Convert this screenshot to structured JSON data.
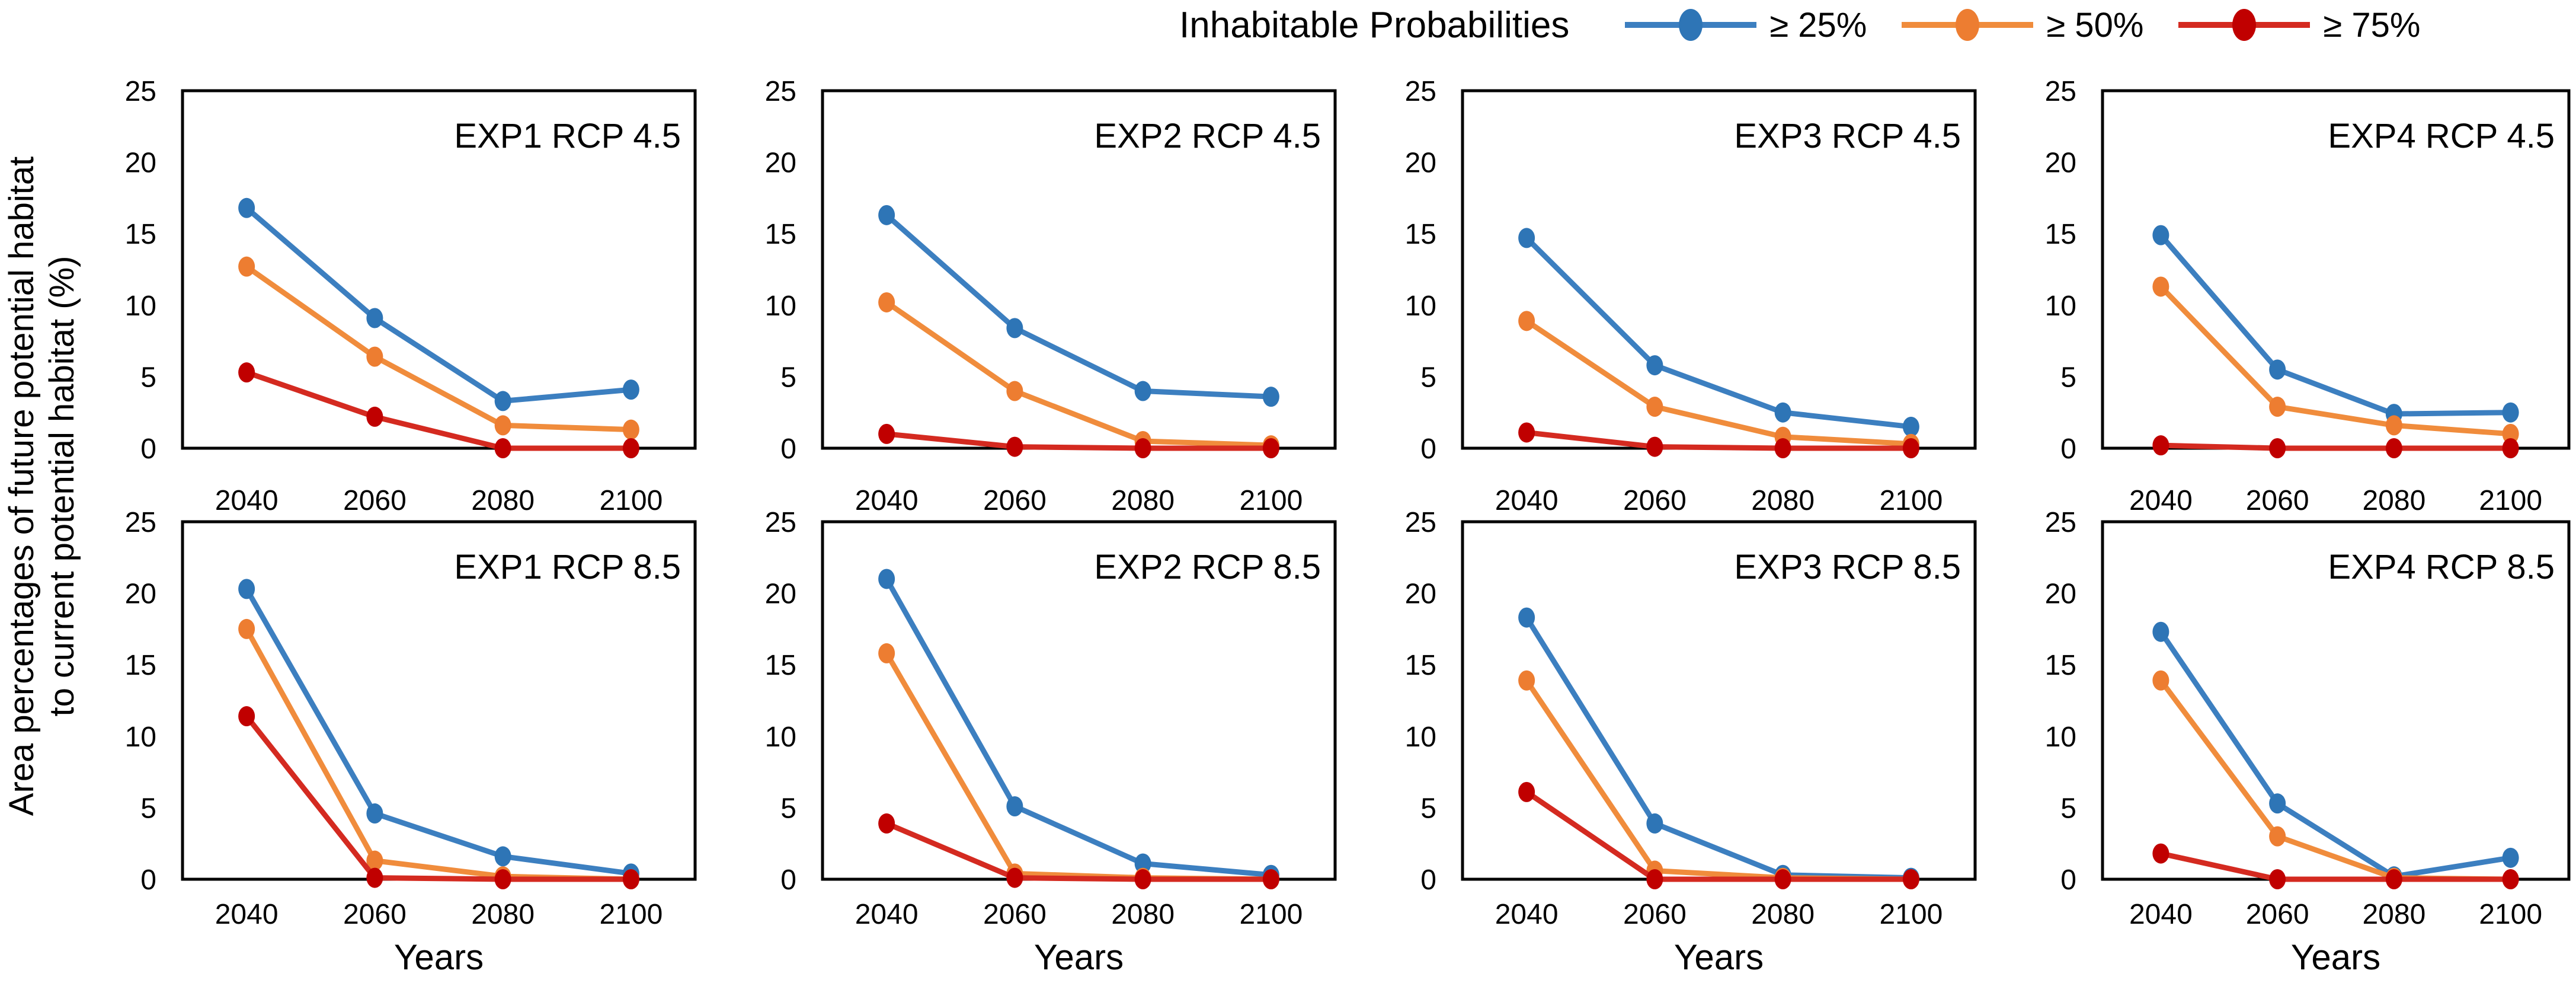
{
  "figure": {
    "ylabel_line1": "Area percentages of future potential habitat",
    "ylabel_line2": "to current potential habitat (%)",
    "xlabel": "Years",
    "background_color": "#ffffff",
    "axis_color": "#000000",
    "legend": {
      "title": "Inhabitable Probabilities",
      "entries": [
        {
          "label": "≥ 25%",
          "line_color": "#3C7FC0",
          "marker_color": "#2E75B6"
        },
        {
          "label": "≥ 50%",
          "line_color": "#F08C3C",
          "marker_color": "#ED7D31"
        },
        {
          "label": "≥ 75%",
          "line_color": "#D42A20",
          "marker_color": "#C00000"
        }
      ]
    }
  },
  "chart_data": [
    {
      "type": "line",
      "title": "EXP1 RCP 4.5",
      "x_categories": [
        "2040",
        "2060",
        "2080",
        "2100"
      ],
      "ylim": [
        0,
        25
      ],
      "yticks": [
        0,
        5,
        10,
        15,
        20,
        25
      ],
      "series": [
        {
          "name": "≥ 25%",
          "values": [
            16.8,
            9.1,
            3.3,
            4.1
          ]
        },
        {
          "name": "≥ 50%",
          "values": [
            12.7,
            6.4,
            1.6,
            1.3
          ]
        },
        {
          "name": "≥ 75%",
          "values": [
            5.3,
            2.2,
            0,
            0
          ]
        }
      ]
    },
    {
      "type": "line",
      "title": "EXP2 RCP 4.5",
      "x_categories": [
        "2040",
        "2060",
        "2080",
        "2100"
      ],
      "ylim": [
        0,
        25
      ],
      "yticks": [
        0,
        5,
        10,
        15,
        20,
        25
      ],
      "series": [
        {
          "name": "≥ 25%",
          "values": [
            16.3,
            8.4,
            4.0,
            3.6
          ]
        },
        {
          "name": "≥ 50%",
          "values": [
            10.2,
            4.0,
            0.5,
            0.2
          ]
        },
        {
          "name": "≥ 75%",
          "values": [
            1.0,
            0.1,
            0,
            0
          ]
        }
      ]
    },
    {
      "type": "line",
      "title": "EXP3 RCP 4.5",
      "x_categories": [
        "2040",
        "2060",
        "2080",
        "2100"
      ],
      "ylim": [
        0,
        25
      ],
      "yticks": [
        0,
        5,
        10,
        15,
        20,
        25
      ],
      "series": [
        {
          "name": "≥ 25%",
          "values": [
            14.7,
            5.8,
            2.5,
            1.5
          ]
        },
        {
          "name": "≥ 50%",
          "values": [
            8.9,
            2.9,
            0.8,
            0.3
          ]
        },
        {
          "name": "≥ 75%",
          "values": [
            1.1,
            0.1,
            0,
            0
          ]
        }
      ]
    },
    {
      "type": "line",
      "title": "EXP4 RCP 4.5",
      "x_categories": [
        "2040",
        "2060",
        "2080",
        "2100"
      ],
      "ylim": [
        0,
        25
      ],
      "yticks": [
        0,
        5,
        10,
        15,
        20,
        25
      ],
      "series": [
        {
          "name": "≥ 25%",
          "values": [
            14.9,
            5.5,
            2.4,
            2.5
          ]
        },
        {
          "name": "≥ 50%",
          "values": [
            11.3,
            2.9,
            1.6,
            1.0
          ]
        },
        {
          "name": "≥ 75%",
          "values": [
            0.2,
            0,
            0,
            0
          ]
        }
      ]
    },
    {
      "type": "line",
      "title": "EXP1 RCP 8.5",
      "x_categories": [
        "2040",
        "2060",
        "2080",
        "2100"
      ],
      "ylim": [
        0,
        25
      ],
      "yticks": [
        0,
        5,
        10,
        15,
        20,
        25
      ],
      "series": [
        {
          "name": "≥ 25%",
          "values": [
            20.3,
            4.6,
            1.6,
            0.4
          ]
        },
        {
          "name": "≥ 50%",
          "values": [
            17.5,
            1.3,
            0.2,
            0
          ]
        },
        {
          "name": "≥ 75%",
          "values": [
            11.4,
            0.1,
            0,
            0
          ]
        }
      ]
    },
    {
      "type": "line",
      "title": "EXP2 RCP 8.5",
      "x_categories": [
        "2040",
        "2060",
        "2080",
        "2100"
      ],
      "ylim": [
        0,
        25
      ],
      "yticks": [
        0,
        5,
        10,
        15,
        20,
        25
      ],
      "series": [
        {
          "name": "≥ 25%",
          "values": [
            21.0,
            5.1,
            1.1,
            0.3
          ]
        },
        {
          "name": "≥ 50%",
          "values": [
            15.8,
            0.4,
            0.1,
            0
          ]
        },
        {
          "name": "≥ 75%",
          "values": [
            3.9,
            0.1,
            0,
            0
          ]
        }
      ]
    },
    {
      "type": "line",
      "title": "EXP3 RCP 8.5",
      "x_categories": [
        "2040",
        "2060",
        "2080",
        "2100"
      ],
      "ylim": [
        0,
        25
      ],
      "yticks": [
        0,
        5,
        10,
        15,
        20,
        25
      ],
      "series": [
        {
          "name": "≥ 25%",
          "values": [
            18.3,
            3.9,
            0.3,
            0.1
          ]
        },
        {
          "name": "≥ 50%",
          "values": [
            13.9,
            0.6,
            0.1,
            0
          ]
        },
        {
          "name": "≥ 75%",
          "values": [
            6.1,
            0,
            0,
            0
          ]
        }
      ]
    },
    {
      "type": "line",
      "title": "EXP4 RCP 8.5",
      "x_categories": [
        "2040",
        "2060",
        "2080",
        "2100"
      ],
      "ylim": [
        0,
        25
      ],
      "yticks": [
        0,
        5,
        10,
        15,
        20,
        25
      ],
      "series": [
        {
          "name": "≥ 25%",
          "values": [
            17.3,
            5.3,
            0.2,
            1.5
          ]
        },
        {
          "name": "≥ 50%",
          "values": [
            13.9,
            3.0,
            0.1,
            0
          ]
        },
        {
          "name": "≥ 75%",
          "values": [
            1.8,
            0,
            0,
            0
          ]
        }
      ]
    }
  ]
}
